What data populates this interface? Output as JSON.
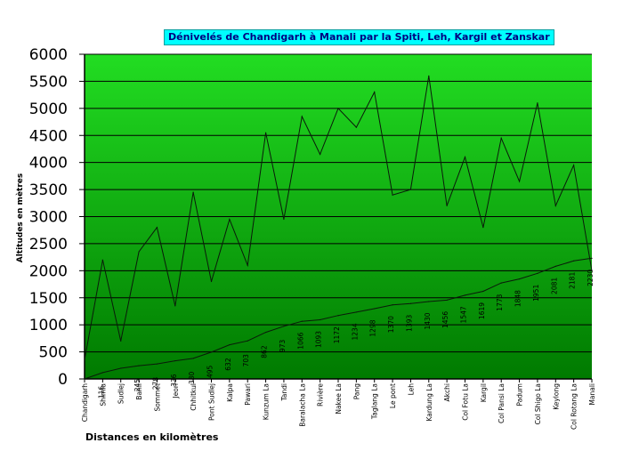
{
  "chart_data": {
    "type": "line",
    "title": "Dénivelés de Chandigarh à Manali par la Spiti, Leh, Kargil et Zanskar",
    "xlabel": "Distances en kilomètres",
    "ylabel": "Altitudes en mètres",
    "ylim": [
      0,
      6000
    ],
    "yticks": [
      0,
      500,
      1000,
      1500,
      2000,
      2500,
      3000,
      3500,
      4000,
      4500,
      5000,
      5500,
      6000
    ],
    "grid": true,
    "colors": {
      "plot_top": "#22dd22",
      "plot_bottom": "#007a00",
      "line": "#0a1a0a",
      "title_bg": "#00ffff",
      "title_text": "#000080"
    },
    "categories": [
      "Chandigarh",
      "Shimla",
      "Sudlej",
      "Bahli",
      "Sommet",
      "Jeori",
      "Chhitkul",
      "Pont Sudlej",
      "Kalpa",
      "Pawari",
      "Kunzum La",
      "Tandi",
      "Baralacha La",
      "Rivière",
      "Nakee La",
      "Pang",
      "Taglang La",
      "Le pont",
      "Leh",
      "Kardung La",
      "Akchi",
      "Col Fotu La",
      "Kargil",
      "Col Pansi La",
      "Padum",
      "Col Shigo La",
      "Keylong",
      "Col Rotang La",
      "Manali"
    ],
    "series": [
      {
        "name": "Altitudes",
        "values": [
          350,
          2200,
          700,
          2350,
          2800,
          1350,
          3450,
          1800,
          2950,
          2100,
          4550,
          2950,
          4850,
          4150,
          5000,
          4650,
          5300,
          3400,
          3500,
          5600,
          3200,
          4100,
          2800,
          4450,
          3650,
          5100,
          3200,
          3950,
          2000
        ]
      },
      {
        "name": "Distances",
        "values": [
          0,
          116,
          198,
          245,
          278,
          336,
          380,
          495,
          632,
          703,
          862,
          973,
          1066,
          1093,
          1172,
          1234,
          1298,
          1370,
          1393,
          1430,
          1456,
          1547,
          1619,
          1773,
          1848,
          1951,
          2081,
          2181,
          2230
        ],
        "labels": [
          "",
          "116",
          "",
          "245",
          "278",
          "336",
          "380",
          "495",
          "632",
          "703",
          "862",
          "973",
          "1066",
          "1093",
          "1172",
          "1234",
          "1298",
          "1370",
          "1393",
          "1430",
          "1456",
          "1547",
          "1619",
          "1773",
          "1848",
          "1951",
          "2081",
          "2181",
          "2230"
        ]
      }
    ]
  }
}
